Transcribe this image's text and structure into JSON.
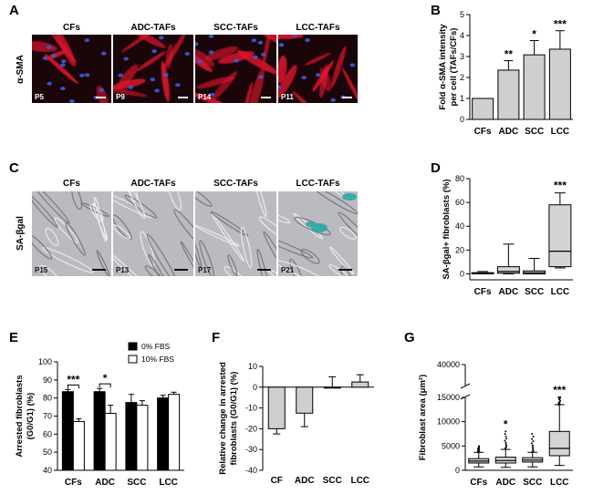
{
  "panels": {
    "A": {
      "label": "A",
      "row_label": "α-SMA",
      "images": [
        {
          "title": "CFs",
          "passage": "P5"
        },
        {
          "title": "ADC-TAFs",
          "passage": "P9"
        },
        {
          "title": "SCC-TAFs",
          "passage": "P14"
        },
        {
          "title": "LCC-TAFs",
          "passage": "P11"
        }
      ]
    },
    "B": {
      "label": "B"
    },
    "C": {
      "label": "C",
      "row_label": "SA-βgal",
      "images": [
        {
          "title": "CFs",
          "passage": "P15"
        },
        {
          "title": "ADC-TAFs",
          "passage": "P13"
        },
        {
          "title": "SCC-TAFs",
          "passage": "P17"
        },
        {
          "title": "LCC-TAFs",
          "passage": "P21"
        }
      ]
    },
    "D": {
      "label": "D"
    },
    "E": {
      "label": "E"
    },
    "F": {
      "label": "F"
    },
    "G": {
      "label": "G"
    }
  },
  "colors": {
    "if_background": "#1a0509",
    "if_actin": "#e0162e",
    "if_nuclei": "#3b5bd8",
    "ph_background": "#b9bbc0",
    "senescence_stain": "#2aa9a6",
    "bar_gray": "#cfcfcf",
    "bar_black": "#000000",
    "bar_white": "#ffffff",
    "box_gray": "#d4d4d4"
  },
  "chart_data": [
    {
      "panel": "B",
      "type": "bar",
      "ylabel": "Fold α-SMA intensity per cell (TAFs/CFs)",
      "categories": [
        "CFs",
        "ADC",
        "SCC",
        "LCC"
      ],
      "values": [
        1.0,
        2.35,
        3.08,
        3.35
      ],
      "errors": [
        0,
        0.45,
        0.68,
        0.88
      ],
      "significance": [
        "",
        "**",
        "*",
        "***"
      ],
      "ylim": [
        0,
        5
      ],
      "yticks": [
        "0",
        "1",
        "2",
        "3",
        "4",
        "5"
      ]
    },
    {
      "panel": "D",
      "type": "box",
      "ylabel": "SA-βgal+ fibroblasts (%)",
      "categories": [
        "CFs",
        "ADC",
        "SCC",
        "LCC"
      ],
      "boxes": [
        {
          "min": 0,
          "q1": 0,
          "median": 0.5,
          "q3": 1,
          "max": 2
        },
        {
          "min": 0,
          "q1": 0.5,
          "median": 2,
          "q3": 6,
          "max": 25
        },
        {
          "min": 0,
          "q1": 0,
          "median": 1,
          "q3": 2.5,
          "max": 13
        },
        {
          "min": 5,
          "q1": 6,
          "median": 19,
          "q3": 58,
          "max": 68
        }
      ],
      "significance": [
        "",
        "",
        "",
        "***"
      ],
      "ylim": [
        -5,
        80
      ],
      "yticks": [
        "0",
        "20",
        "40",
        "60",
        "80"
      ]
    },
    {
      "panel": "E",
      "type": "grouped-bar",
      "ylabel": "Arrested fibroblasts (G0/G1) (%)",
      "categories": [
        "CFs",
        "ADC",
        "SCC",
        "LCC"
      ],
      "series": [
        {
          "name": "0% FBS",
          "values": [
            83.5,
            83.5,
            77.5,
            80
          ],
          "errors": [
            1.2,
            1.8,
            4.5,
            1.5
          ]
        },
        {
          "name": "10% FBS",
          "values": [
            67,
            71.5,
            76,
            82
          ],
          "errors": [
            1.5,
            4.5,
            2.5,
            1.2
          ]
        }
      ],
      "significance": [
        "***",
        "*",
        "",
        ""
      ],
      "ylim": [
        40,
        100
      ],
      "yticks": [
        "40",
        "50",
        "60",
        "70",
        "80",
        "90",
        "100"
      ]
    },
    {
      "panel": "F",
      "type": "bar",
      "ylabel": "Relative change in arrested fibroblasts (G0/G1) (%)",
      "categories": [
        "CF",
        "ADC",
        "SCC",
        "LCC"
      ],
      "values": [
        -20,
        -12.5,
        0,
        2.5
      ],
      "errors": [
        2.5,
        6.5,
        5,
        3.5
      ],
      "ylim": [
        -40,
        10
      ],
      "yticks": [
        "10",
        "0",
        "-10",
        "-20",
        "-30",
        "-40"
      ]
    },
    {
      "panel": "G",
      "type": "box",
      "ylabel": "Fibroblast area (μm²)",
      "categories": [
        "CFs",
        "ADC",
        "SCC",
        "LCC"
      ],
      "boxes": [
        {
          "min": 700,
          "q1": 1500,
          "median": 1900,
          "q3": 2400,
          "max": 3700
        },
        {
          "min": 600,
          "q1": 1500,
          "median": 2000,
          "q3": 2700,
          "max": 4300
        },
        {
          "min": 700,
          "q1": 1700,
          "median": 2100,
          "q3": 2600,
          "max": 3700
        },
        {
          "min": 1000,
          "q1": 3000,
          "median": 4500,
          "q3": 8000,
          "max": 13500
        }
      ],
      "outlier_max": [
        5000,
        8000,
        7500,
        22000
      ],
      "significance": [
        "",
        "*",
        "",
        "***"
      ],
      "ylim": [
        0,
        40000
      ],
      "axis_break": [
        15000,
        39000
      ],
      "yticks": [
        "0",
        "5000",
        "10000",
        "15000",
        "40000"
      ]
    }
  ]
}
